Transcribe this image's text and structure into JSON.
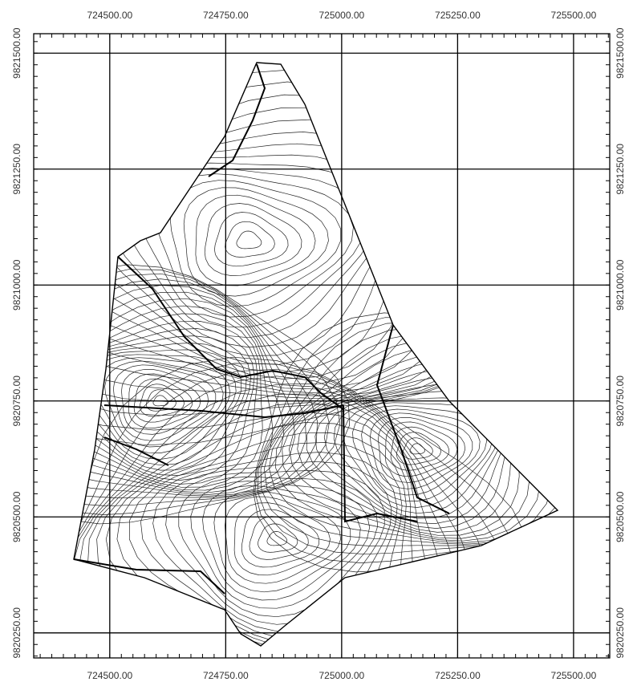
{
  "map": {
    "xlim": [
      724336,
      725578
    ],
    "ylim": [
      9820196,
      9821542
    ],
    "xticks": [
      {
        "value": 724500,
        "label": "724500.00"
      },
      {
        "value": 724750,
        "label": "724750.00"
      },
      {
        "value": 725000,
        "label": "725000.00"
      },
      {
        "value": 725250,
        "label": "725250.00"
      },
      {
        "value": 725500,
        "label": "725500.00"
      }
    ],
    "yticks": [
      {
        "value": 9820250,
        "label": "9820250.00"
      },
      {
        "value": 9820500,
        "label": "9820500.00"
      },
      {
        "value": 9820750,
        "label": "9820750.00"
      },
      {
        "value": 9821000,
        "label": "9821000.00"
      },
      {
        "value": 9821250,
        "label": "9821250.00"
      },
      {
        "value": 9821500,
        "label": "9821500.00"
      }
    ]
  }
}
